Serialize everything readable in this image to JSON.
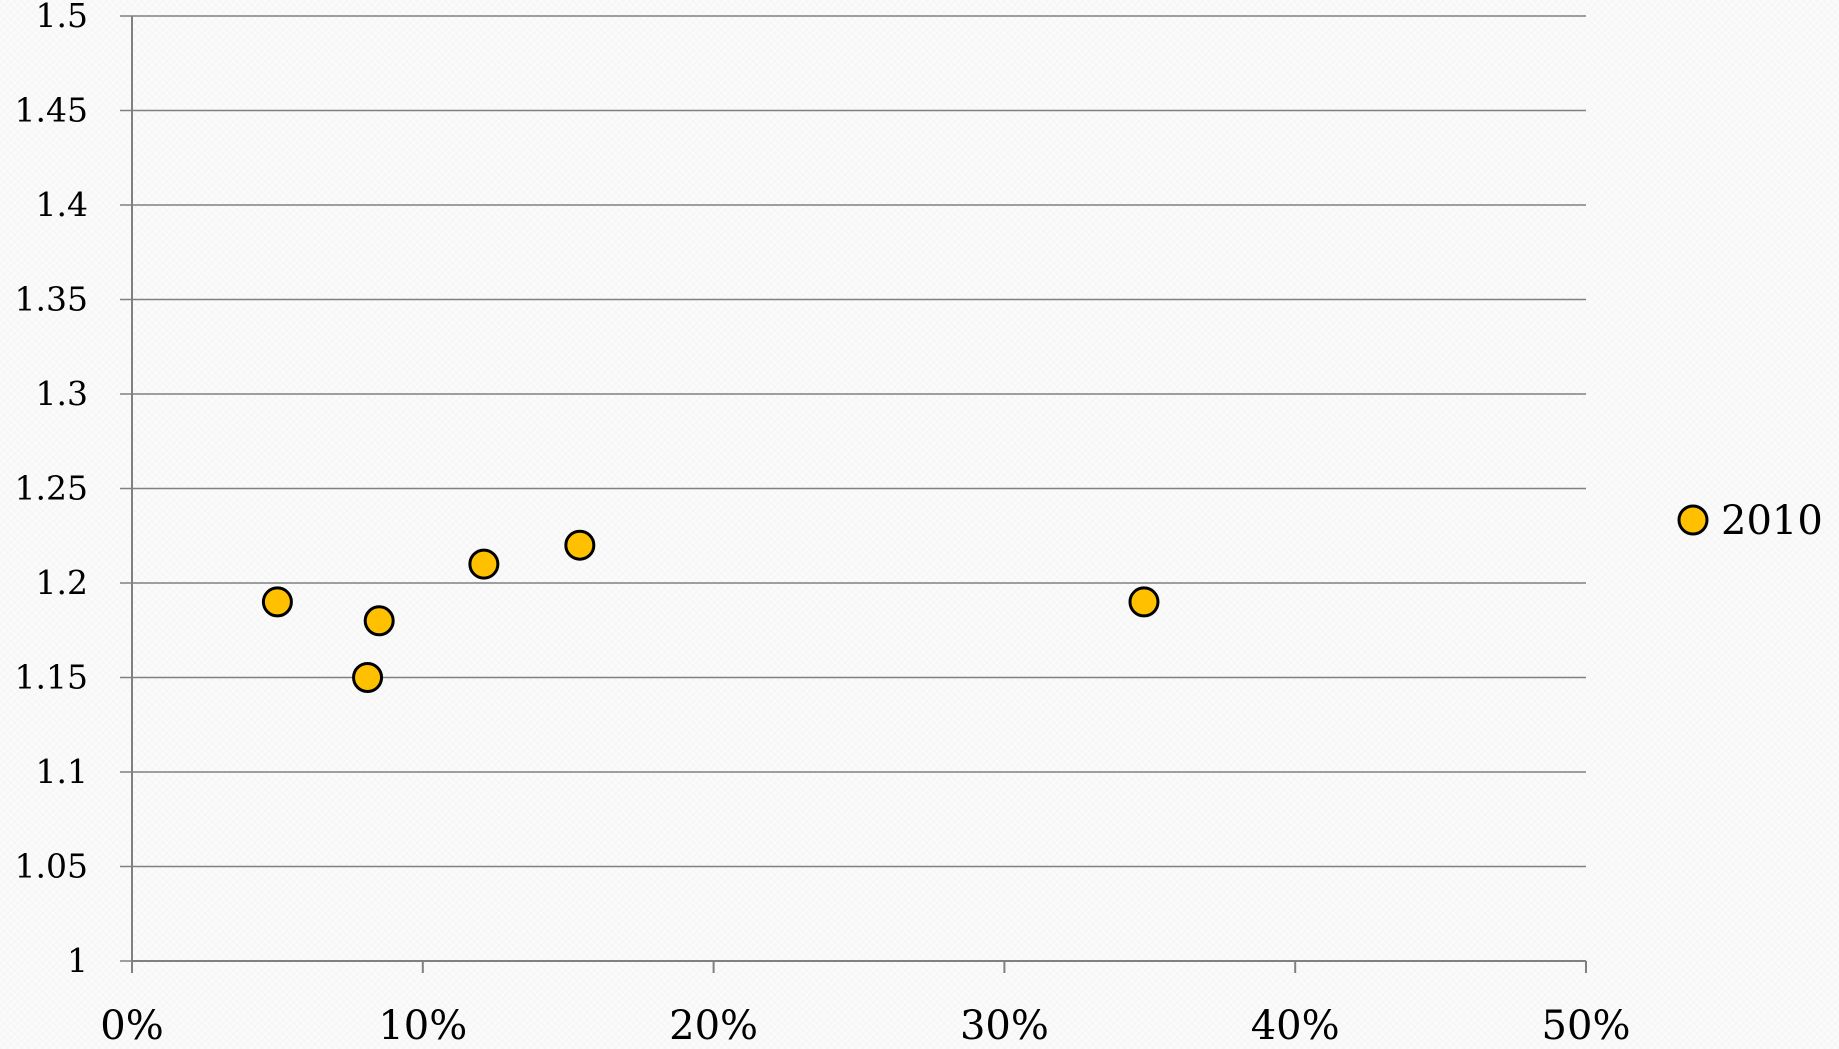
{
  "chart_data": {
    "type": "scatter",
    "title": "",
    "xlabel": "",
    "ylabel": "",
    "xlim": [
      0,
      0.5
    ],
    "ylim": [
      1,
      1.5
    ],
    "x_ticks": [
      "0%",
      "10%",
      "20%",
      "30%",
      "40%",
      "50%"
    ],
    "y_ticks": [
      "1",
      "1.05",
      "1.1",
      "1.15",
      "1.2",
      "1.25",
      "1.3",
      "1.35",
      "1.4",
      "1.45",
      "1.5"
    ],
    "grid": "horizontal",
    "legend_position": "right",
    "series": [
      {
        "name": "2010",
        "color": "#FFC000",
        "edge_color": "#000000",
        "points": [
          {
            "x": 0.05,
            "y": 1.19
          },
          {
            "x": 0.081,
            "y": 1.15
          },
          {
            "x": 0.085,
            "y": 1.18
          },
          {
            "x": 0.121,
            "y": 1.21
          },
          {
            "x": 0.154,
            "y": 1.22
          },
          {
            "x": 0.348,
            "y": 1.19
          }
        ]
      }
    ]
  }
}
